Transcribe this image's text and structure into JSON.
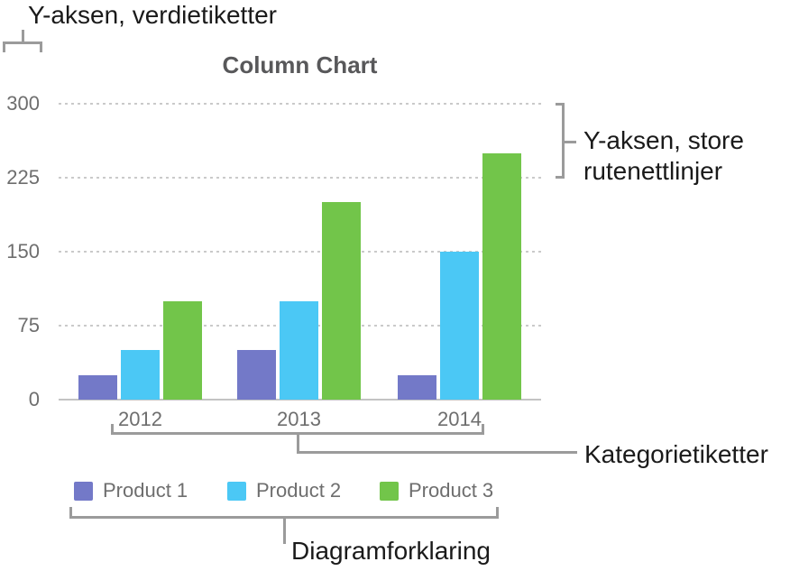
{
  "callouts": {
    "y_value_labels": "Y-aksen, verdietiketter",
    "y_gridlines": "Y-aksen, store rutenettlinjer",
    "category_labels": "Kategorietiketter",
    "legend": "Diagramforklaring"
  },
  "chart_data": {
    "type": "bar",
    "title": "Column Chart",
    "categories": [
      "2012",
      "2013",
      "2014"
    ],
    "series": [
      {
        "name": "Product 1",
        "color": "#7379c8",
        "values": [
          25,
          50,
          25
        ]
      },
      {
        "name": "Product 2",
        "color": "#4bc8f5",
        "values": [
          50,
          100,
          150
        ]
      },
      {
        "name": "Product 3",
        "color": "#72c54a",
        "values": [
          100,
          200,
          250
        ]
      }
    ],
    "xlabel": "",
    "ylabel": "",
    "ylim": [
      0,
      300
    ],
    "yticks": [
      0,
      75,
      150,
      225,
      300
    ],
    "grid": "horizontal dotted major gridlines",
    "legend_position": "bottom"
  },
  "colors": {
    "gridline": "#cacaca",
    "axis_line": "#c3c3c3",
    "bracket": "#9b9b9b",
    "axis_text": "#6e6e6e",
    "title_text": "#58585a",
    "callout_text": "#1a1a1a",
    "background": "#ffffff"
  }
}
